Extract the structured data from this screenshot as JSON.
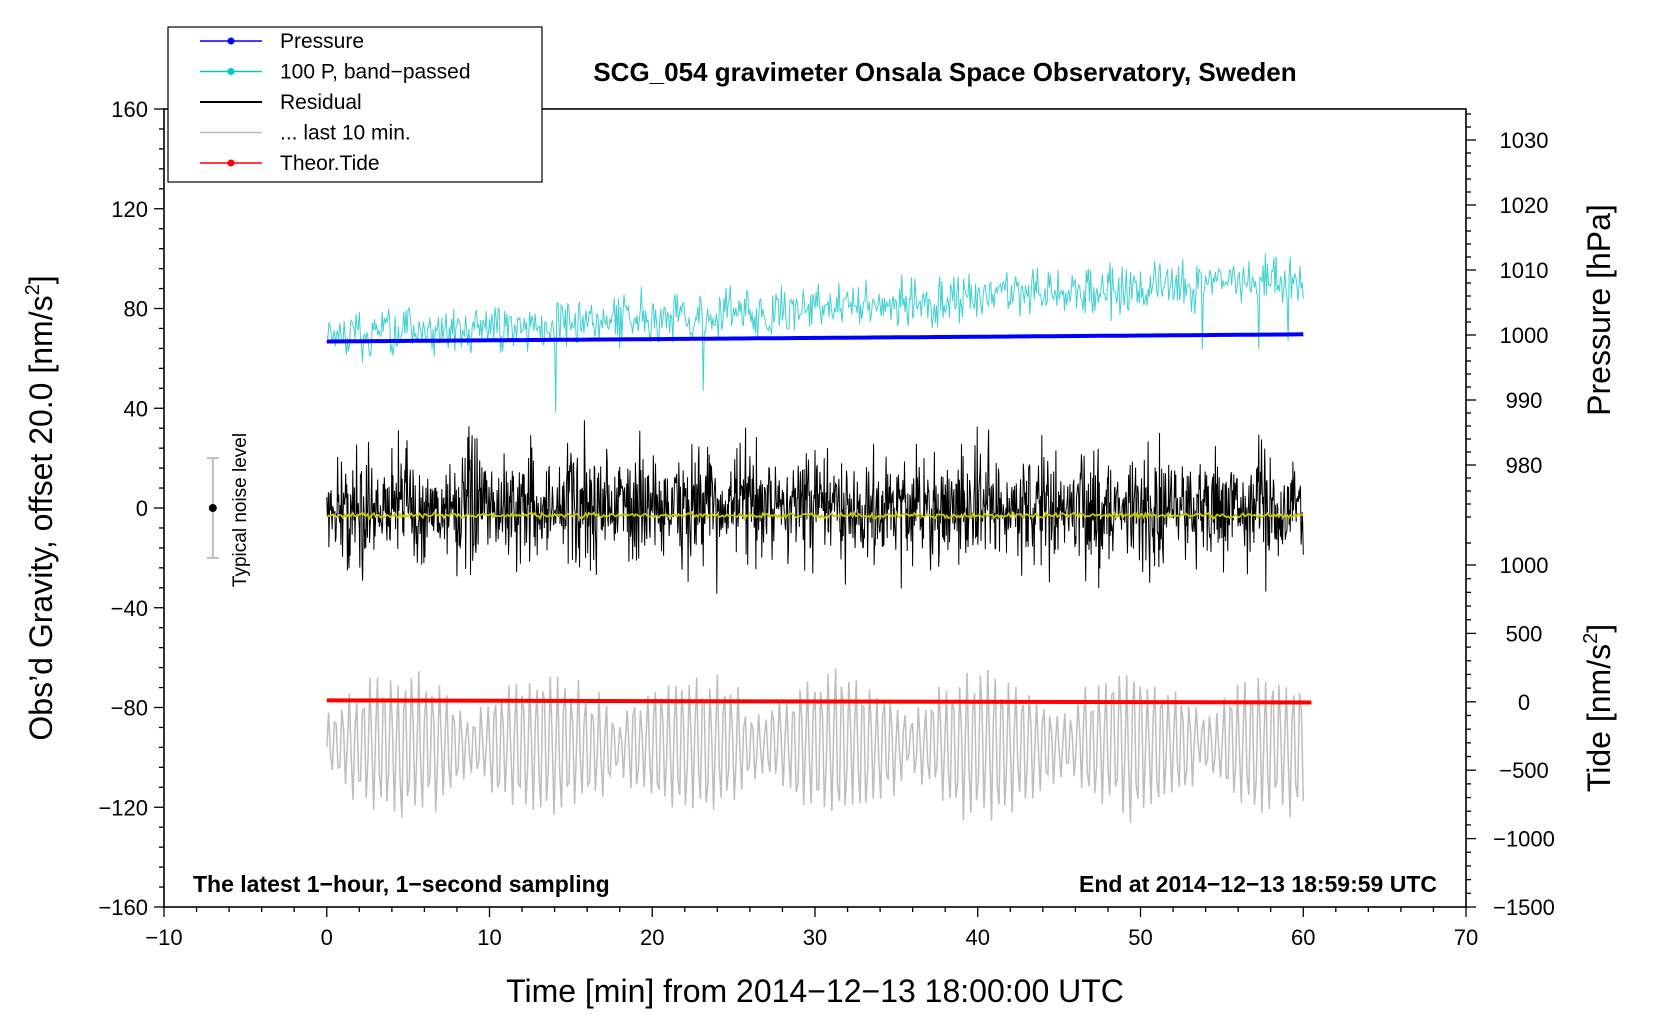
{
  "chart_data": {
    "type": "line",
    "title": "SCG_054 gravimeter Onsala Space Observatory, Sweden",
    "xlabel": "Time [min] from 2014−12−13 18:00:00 UTC",
    "ylabel_left": "Obs’d Gravity, offset 20.0 [nm/s²]",
    "ylabel_left_main": "Obs’d Gravity, offset 20.0 [nm/s",
    "ylabel_pressure": "Pressure [hPa]",
    "ylabel_tide": "Tide [nm/s",
    "ylabel_superscript": "2",
    "ylabel_close": "]",
    "xlim": [
      -10,
      70
    ],
    "ylim_left": [
      -160,
      160
    ],
    "ylim_pressure": [
      968,
      1034
    ],
    "ylim_tide": [
      -1500,
      1500
    ],
    "x_ticks": [
      -10,
      0,
      10,
      20,
      30,
      40,
      50,
      60,
      70
    ],
    "x_tick_labels": [
      "−10",
      "0",
      "10",
      "20",
      "30",
      "40",
      "50",
      "60",
      "70"
    ],
    "y_left_ticks": [
      -160,
      -120,
      -80,
      -40,
      0,
      40,
      80,
      120,
      160
    ],
    "y_left_tick_labels": [
      "−160",
      "−120",
      "−80",
      "−40",
      "0",
      "40",
      "80",
      "120",
      "160"
    ],
    "pressure_ticks": [
      980,
      990,
      1000,
      1010,
      1020,
      1030
    ],
    "pressure_tick_labels": [
      "980",
      "990",
      "1000",
      "1010",
      "1020",
      "1030"
    ],
    "tide_ticks": [
      -1500,
      -1000,
      -500,
      0,
      500,
      1000
    ],
    "tide_tick_labels": [
      "−1500",
      "−1000",
      "−500",
      "0",
      "500",
      "1000"
    ],
    "corner_note_left": "The latest 1−hour, 1−second sampling",
    "corner_note_right": "End at 2014−12−13 18:59:59 UTC",
    "legend": [
      {
        "label": "Pressure",
        "color": "#0000ff",
        "marker": true
      },
      {
        "label": "100 P, band−passed",
        "color": "#00c8c8",
        "marker": true
      },
      {
        "label": "Residual",
        "color": "#000000",
        "marker": false
      },
      {
        "label": "... last 10 min.",
        "color": "#bebebe",
        "marker": false
      },
      {
        "label": "Theor.Tide",
        "color": "#ff0000",
        "marker": true
      }
    ],
    "noise_indicator": {
      "label": "Typical noise level",
      "x": -7,
      "center": 0,
      "half_range": 20
    },
    "series": [
      {
        "name": "Pressure",
        "axis": "pressure",
        "color": "#0000ff",
        "x_start": 0,
        "x_end": 60,
        "start_value": 999.0,
        "end_value": 1000.1
      },
      {
        "name": "100 P, band−passed",
        "axis": "left",
        "color": "#40d0d0",
        "x_start": 0,
        "x_end": 60,
        "start_value": 68,
        "end_value": 92,
        "amplitude": 14
      },
      {
        "name": "Residual",
        "axis": "left",
        "color": "#000000",
        "x_start": 0,
        "x_end": 60,
        "start_value": 0,
        "end_value": 0,
        "amplitude": 38
      },
      {
        "name": "Residual smoothed",
        "axis": "left",
        "color": "#c8c800",
        "x_start": 0,
        "x_end": 60,
        "start_value": -3,
        "end_value": -3,
        "amplitude": 1.5
      },
      {
        "name": "... last 10 min.",
        "axis": "left",
        "color": "#bebebe",
        "x_start": 0,
        "x_end": 60,
        "start_value": -95,
        "end_value": -95,
        "amplitude": 28
      },
      {
        "name": "Theor.Tide",
        "axis": "tide",
        "color": "#ff0000",
        "x_start": 0,
        "x_end": 60.5,
        "start_value": 10,
        "end_value": -5
      }
    ]
  }
}
